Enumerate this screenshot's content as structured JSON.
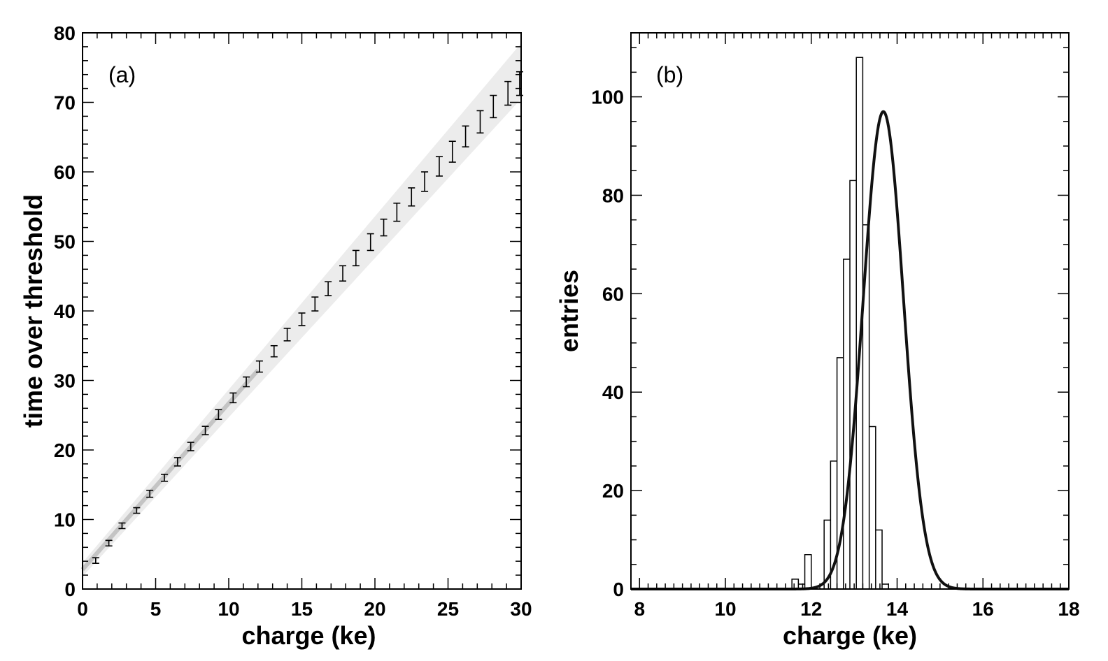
{
  "chart_data": [
    {
      "type": "scatter",
      "panel_label": "(a)",
      "xlabel": "charge (ke)",
      "ylabel": "time over threshold",
      "xlim": [
        0,
        30
      ],
      "ylim": [
        0,
        80
      ],
      "xticks": [
        "0",
        "5",
        "10",
        "15",
        "20",
        "25",
        "30"
      ],
      "yticks": [
        "0",
        "10",
        "20",
        "30",
        "40",
        "50",
        "60",
        "70",
        "80"
      ],
      "band": {
        "y_at_x0": [
          1.8,
          3.8
        ],
        "y_at_x30": [
          70.5,
          78.5
        ]
      },
      "points": [
        {
          "x": 0.9,
          "y": 4.1,
          "err": 0.4
        },
        {
          "x": 1.8,
          "y": 6.6,
          "err": 0.4
        },
        {
          "x": 2.7,
          "y": 9.1,
          "err": 0.4
        },
        {
          "x": 3.7,
          "y": 11.3,
          "err": 0.4
        },
        {
          "x": 4.6,
          "y": 13.7,
          "err": 0.5
        },
        {
          "x": 5.6,
          "y": 16.0,
          "err": 0.5
        },
        {
          "x": 6.5,
          "y": 18.3,
          "err": 0.6
        },
        {
          "x": 7.4,
          "y": 20.5,
          "err": 0.6
        },
        {
          "x": 8.4,
          "y": 22.8,
          "err": 0.6
        },
        {
          "x": 9.3,
          "y": 25.1,
          "err": 0.7
        },
        {
          "x": 10.3,
          "y": 27.5,
          "err": 0.7
        },
        {
          "x": 11.2,
          "y": 29.8,
          "err": 0.7
        },
        {
          "x": 12.1,
          "y": 32.0,
          "err": 0.8
        },
        {
          "x": 13.1,
          "y": 34.2,
          "err": 0.8
        },
        {
          "x": 14.0,
          "y": 36.6,
          "err": 0.9
        },
        {
          "x": 15.0,
          "y": 38.8,
          "err": 0.9
        },
        {
          "x": 15.9,
          "y": 41.0,
          "err": 1.0
        },
        {
          "x": 16.8,
          "y": 43.2,
          "err": 1.0
        },
        {
          "x": 17.8,
          "y": 45.4,
          "err": 1.1
        },
        {
          "x": 18.7,
          "y": 47.6,
          "err": 1.1
        },
        {
          "x": 19.7,
          "y": 49.9,
          "err": 1.2
        },
        {
          "x": 20.6,
          "y": 52.0,
          "err": 1.2
        },
        {
          "x": 21.5,
          "y": 54.2,
          "err": 1.3
        },
        {
          "x": 22.5,
          "y": 56.4,
          "err": 1.3
        },
        {
          "x": 23.4,
          "y": 58.6,
          "err": 1.4
        },
        {
          "x": 24.4,
          "y": 60.8,
          "err": 1.4
        },
        {
          "x": 25.3,
          "y": 62.9,
          "err": 1.5
        },
        {
          "x": 26.2,
          "y": 65.1,
          "err": 1.5
        },
        {
          "x": 27.2,
          "y": 67.2,
          "err": 1.6
        },
        {
          "x": 28.1,
          "y": 69.4,
          "err": 1.6
        },
        {
          "x": 29.1,
          "y": 71.3,
          "err": 1.7
        },
        {
          "x": 29.9,
          "y": 72.7,
          "err": 1.7
        }
      ],
      "grid": false
    },
    {
      "type": "histogram",
      "panel_label": "(b)",
      "xlabel": "charge (ke)",
      "ylabel": "entries",
      "xlim": [
        7.8,
        18
      ],
      "ylim": [
        0,
        113
      ],
      "xticks": [
        "8",
        "10",
        "12",
        "14",
        "16",
        "18"
      ],
      "yticks": [
        "0",
        "20",
        "40",
        "60",
        "80",
        "100"
      ],
      "bin_width": 0.15,
      "bins": [
        {
          "x": 11.55,
          "count": 2
        },
        {
          "x": 11.7,
          "count": 1
        },
        {
          "x": 11.85,
          "count": 7
        },
        {
          "x": 12.0,
          "count": 0
        },
        {
          "x": 12.15,
          "count": 0
        },
        {
          "x": 12.3,
          "count": 14
        },
        {
          "x": 12.45,
          "count": 26
        },
        {
          "x": 12.6,
          "count": 47
        },
        {
          "x": 12.75,
          "count": 67
        },
        {
          "x": 12.9,
          "count": 83
        },
        {
          "x": 13.05,
          "count": 108
        },
        {
          "x": 13.2,
          "count": 74
        },
        {
          "x": 13.35,
          "count": 33
        },
        {
          "x": 13.5,
          "count": 12
        },
        {
          "x": 13.65,
          "count": 1
        },
        {
          "x": 13.8,
          "count": 0
        }
      ],
      "fit": {
        "type": "gaussian",
        "amplitude": 97,
        "mean": 13.68,
        "sigma": 0.47
      },
      "grid": false
    }
  ]
}
